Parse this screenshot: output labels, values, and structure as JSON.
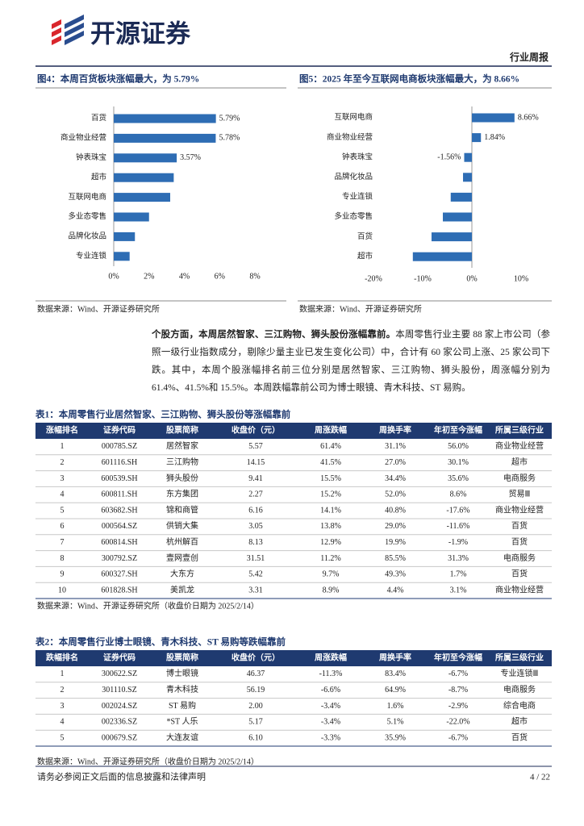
{
  "header": {
    "logo_text": "开源证券",
    "report_type": "行业周报"
  },
  "figures": [
    {
      "title": "图4：本周百货板块涨幅最大，为 5.79%",
      "chart": {
        "type": "bar",
        "categories": [
          "百货",
          "商业物业经营",
          "钟表珠宝",
          "超市",
          "互联网电商",
          "多业态零售",
          "品牌化妆品",
          "专业连锁"
        ],
        "values": [
          5.79,
          5.78,
          3.57,
          3.4,
          3.2,
          2.0,
          1.2,
          0.9
        ],
        "value_labels": [
          "5.79%",
          "5.78%",
          "3.57%",
          null,
          null,
          null,
          null,
          null
        ],
        "color": "#2e6db4",
        "xlim": [
          0,
          8
        ],
        "xticks": [
          {
            "value": 0,
            "label": "0%"
          },
          {
            "value": 2,
            "label": "2%"
          },
          {
            "value": 4,
            "label": "4%"
          },
          {
            "value": 6,
            "label": "6%"
          },
          {
            "value": 8,
            "label": "8%"
          }
        ]
      },
      "source": "数据来源：Wind、开源证券研究所"
    },
    {
      "title": "图5：2025 年至今互联网电商板块涨幅最大，为 8.66%",
      "chart": {
        "type": "bar",
        "categories": [
          "互联网电商",
          "商业物业经营",
          "钟表珠宝",
          "品牌化妆品",
          "专业连锁",
          "多业态零售",
          "百货",
          "超市"
        ],
        "values": [
          8.66,
          1.84,
          -1.56,
          -1.8,
          -4.3,
          -5.9,
          -8.2,
          -12.0
        ],
        "value_labels": [
          "8.66%",
          "1.84%",
          "-1.56%",
          null,
          null,
          null,
          null,
          null
        ],
        "color": "#2e6db4",
        "xlim": [
          -20,
          10
        ],
        "xticks": [
          {
            "value": -20,
            "label": "-20%"
          },
          {
            "value": -10,
            "label": "-10%"
          },
          {
            "value": 0,
            "label": "0%"
          },
          {
            "value": 10,
            "label": "10%"
          }
        ]
      },
      "source": "数据来源：Wind、开源证券研究所"
    }
  ],
  "paragraph": {
    "bold": "个股方面，本周居然智家、三江购物、狮头股份涨幅靠前。",
    "text": "本周零售行业主要 88 家上市公司（参照一级行业指数成分，剔除少量主业已发生变化公司）中，合计有 60 家公司上涨、25 家公司下跌。其中，本周个股涨幅排名前三位分别是居然智家、三江购物、狮头股份，周涨幅分别为 61.4%、41.5%和 15.5%。本周跌幅靠前公司为博士眼镜、青木科技、ST 易购。"
  },
  "tables": [
    {
      "title": "表1：本周零售行业居然智家、三江购物、狮头股份等涨幅靠前",
      "columns": [
        "涨幅排名",
        "证券代码",
        "股票简称",
        "收盘价（元）",
        "周涨跌幅",
        "周换手率",
        "年初至今涨幅",
        "所属三级行业"
      ],
      "rows": [
        [
          "1",
          "000785.SZ",
          "居然智家",
          "5.57",
          "61.4%",
          "31.1%",
          "56.0%",
          "商业物业经营"
        ],
        [
          "2",
          "601116.SH",
          "三江购物",
          "14.15",
          "41.5%",
          "27.0%",
          "30.1%",
          "超市"
        ],
        [
          "3",
          "600539.SH",
          "狮头股份",
          "9.41",
          "15.5%",
          "34.4%",
          "35.6%",
          "电商服务"
        ],
        [
          "4",
          "600811.SH",
          "东方集团",
          "2.27",
          "15.2%",
          "52.0%",
          "8.6%",
          "贸易Ⅲ"
        ],
        [
          "5",
          "603682.SH",
          "锦和商管",
          "6.16",
          "14.1%",
          "40.8%",
          "-17.6%",
          "商业物业经营"
        ],
        [
          "6",
          "000564.SZ",
          "供销大集",
          "3.05",
          "13.8%",
          "29.0%",
          "-11.6%",
          "百货"
        ],
        [
          "7",
          "600814.SH",
          "杭州解百",
          "8.13",
          "12.9%",
          "19.9%",
          "-1.9%",
          "百货"
        ],
        [
          "8",
          "300792.SZ",
          "壹网壹创",
          "31.51",
          "11.2%",
          "85.5%",
          "31.3%",
          "电商服务"
        ],
        [
          "9",
          "600327.SH",
          "大东方",
          "5.42",
          "9.7%",
          "49.3%",
          "1.7%",
          "百货"
        ],
        [
          "10",
          "601828.SH",
          "美凯龙",
          "3.31",
          "8.9%",
          "4.4%",
          "3.1%",
          "商业物业经营"
        ]
      ],
      "source": "数据来源：Wind、开源证券研究所（收盘价日期为 2025/2/14）"
    },
    {
      "title": "表2：本周零售行业博士眼镜、青木科技、ST 易购等跌幅靠前",
      "columns": [
        "跌幅排名",
        "证券代码",
        "股票简称",
        "收盘价（元）",
        "周涨跌幅",
        "周换手率",
        "年初至今涨幅",
        "所属三级行业"
      ],
      "rows": [
        [
          "1",
          "300622.SZ",
          "博士眼镜",
          "46.37",
          "-11.3%",
          "83.4%",
          "-6.7%",
          "专业连锁Ⅲ"
        ],
        [
          "2",
          "301110.SZ",
          "青木科技",
          "56.19",
          "-6.6%",
          "64.9%",
          "-8.7%",
          "电商服务"
        ],
        [
          "3",
          "002024.SZ",
          "ST 易购",
          "2.00",
          "-3.4%",
          "1.6%",
          "-2.9%",
          "综合电商"
        ],
        [
          "4",
          "002336.SZ",
          "*ST 人乐",
          "5.17",
          "-3.4%",
          "5.1%",
          "-22.0%",
          "超市"
        ],
        [
          "5",
          "000679.SZ",
          "大连友谊",
          "6.10",
          "-3.3%",
          "35.9%",
          "-6.7%",
          "百货"
        ]
      ],
      "source": "数据来源：Wind、开源证券研究所（收盘价日期为 2025/2/14）"
    }
  ],
  "footer": {
    "disclaimer": "请务必参阅正文后面的信息披露和法律声明",
    "page": "4 / 22"
  }
}
